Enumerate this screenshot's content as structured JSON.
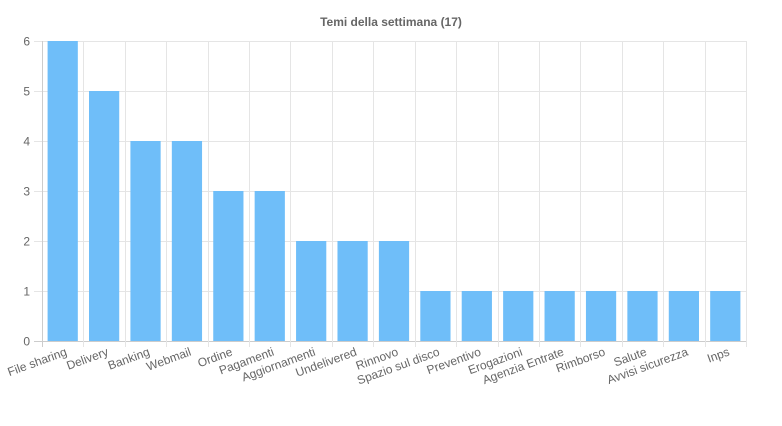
{
  "chart_data": {
    "type": "bar",
    "title": "Temi della settimana (17)",
    "xlabel": "",
    "ylabel": "",
    "categories": [
      "File sharing",
      "Delivery",
      "Banking",
      "Webmail",
      "Ordine",
      "Pagamenti",
      "Aggiornamenti",
      "Undelivered",
      "Rinnovo",
      "Spazio sul disco",
      "Preventivo",
      "Erogazioni",
      "Agenzia Entrate",
      "Rimborso",
      "Salute",
      "Avvisi sicurezza",
      "Inps"
    ],
    "values": [
      6,
      5,
      4,
      4,
      3,
      3,
      2,
      2,
      2,
      1,
      1,
      1,
      1,
      1,
      1,
      1,
      1
    ],
    "ylim": [
      0,
      6
    ],
    "yticks": [
      "0",
      "1",
      "2",
      "3",
      "4",
      "5",
      "6"
    ],
    "grid": true,
    "legend": "none",
    "colors": {
      "bar": "#6fbef9",
      "grid": "#e5e5e5",
      "axis": "#cccccc",
      "text": "#666666"
    }
  }
}
